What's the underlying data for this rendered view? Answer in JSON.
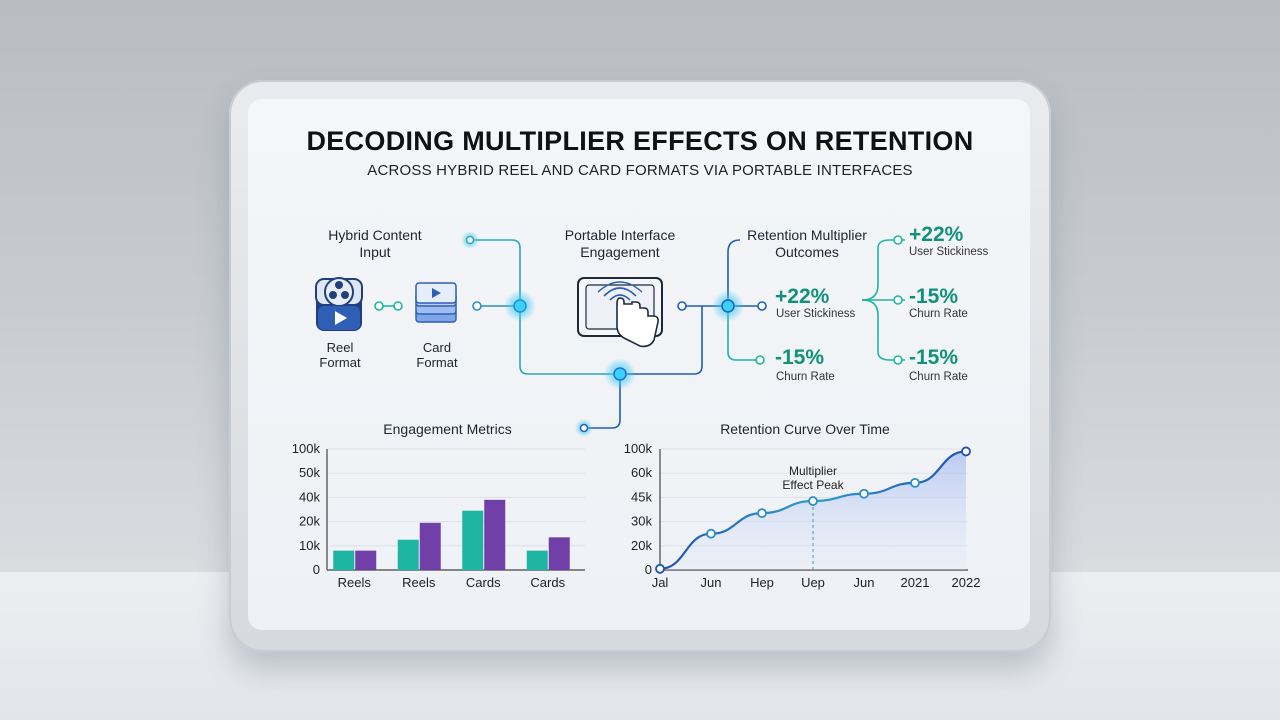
{
  "title": "DECODING MULTIPLIER EFFECTS ON RETENTION",
  "subtitle": "ACROSS HYBRID REEL AND CARD FORMATS VIA PORTABLE INTERFACES",
  "flow": {
    "input_label_1": "Hybrid Content",
    "input_label_2": "Input",
    "reel_label_1": "Reel",
    "reel_label_2": "Format",
    "card_label_1": "Card",
    "card_label_2": "Format",
    "engage_label_1": "Portable Interface",
    "engage_label_2": "Engagement",
    "outcome_label_1": "Retention Multiplier",
    "outcome_label_2": "Outcomes",
    "outcomes_inner": [
      {
        "value": "+22%",
        "label": "User Stickiness"
      },
      {
        "value": "-15%",
        "label": "Churn Rate"
      }
    ],
    "outcomes_outer": [
      {
        "value": "+22%",
        "label": "User Stickiness"
      },
      {
        "value": "-15%",
        "label": "Churn Rate"
      },
      {
        "value": "-15%",
        "label": "Churn Rate"
      }
    ]
  },
  "colors": {
    "teal": "#1fb5a3",
    "purple": "#7040a8",
    "line_blue": "#1f5fb5",
    "glow": "#38c8f0",
    "outcome_green": "#11907a"
  },
  "icons": [
    "film-reel-icon",
    "card-stack-icon",
    "tablet-touch-icon"
  ],
  "chart_data": [
    {
      "type": "bar",
      "title": "Engagement Metrics",
      "categories": [
        "Reels",
        "Reels",
        "Cards",
        "Cards"
      ],
      "y_ticks": [
        "0",
        "10k",
        "20k",
        "40k",
        "50k",
        "100k"
      ],
      "series": [
        {
          "values": [
            16,
            25,
            49,
            16
          ]
        },
        {
          "values": [
            16,
            39,
            58,
            27
          ]
        }
      ],
      "ylim": [
        0,
        100
      ]
    },
    {
      "type": "area",
      "title": "Retention Curve Over Time",
      "categories": [
        "Jal",
        "Jun",
        "Hep",
        "Uep",
        "Jun",
        "2021",
        "2022"
      ],
      "y_ticks": [
        "0",
        "20k",
        "30k",
        "45k",
        "60k",
        "100k"
      ],
      "values": [
        1,
        30,
        47,
        57,
        63,
        72,
        98
      ],
      "ylim": [
        0,
        100
      ],
      "annotation": {
        "text_1": "Multiplier",
        "text_2": "Effect Peak",
        "index": 3
      }
    }
  ]
}
